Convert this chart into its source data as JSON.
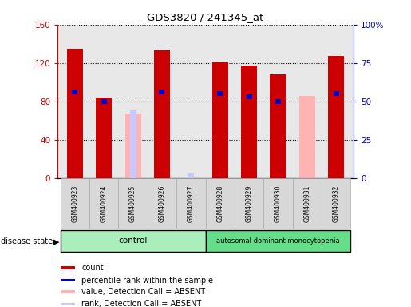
{
  "title": "GDS3820 / 241345_at",
  "samples": [
    "GSM400923",
    "GSM400924",
    "GSM400925",
    "GSM400926",
    "GSM400927",
    "GSM400928",
    "GSM400929",
    "GSM400930",
    "GSM400931",
    "GSM400932"
  ],
  "count_values": [
    135,
    84,
    0,
    133,
    0,
    121,
    117,
    108,
    0,
    127
  ],
  "percentile_values": [
    56,
    50,
    0,
    56,
    0,
    55,
    53,
    50,
    0,
    55
  ],
  "absent_value_values": [
    0,
    0,
    67,
    0,
    0,
    0,
    0,
    0,
    86,
    0
  ],
  "absent_rank_values": [
    0,
    0,
    44,
    0,
    3,
    0,
    0,
    0,
    0,
    0
  ],
  "ylim_left": [
    0,
    160
  ],
  "ylim_right": [
    0,
    100
  ],
  "yticks_left": [
    0,
    40,
    80,
    120,
    160
  ],
  "ytick_labels_left": [
    "0",
    "40",
    "80",
    "120",
    "160"
  ],
  "yticks_right": [
    0,
    25,
    50,
    75,
    100
  ],
  "ytick_labels_right": [
    "0",
    "25",
    "50",
    "75",
    "100%"
  ],
  "color_count": "#cc0000",
  "color_percentile": "#0000cc",
  "color_absent_value": "#ffb3b3",
  "color_absent_rank": "#c8c8ff",
  "color_control_bg": "#aaeebb",
  "color_disease_bg": "#66dd88",
  "plot_bg": "#e8e8e8",
  "legend_items": [
    {
      "color": "#cc0000",
      "label": "count"
    },
    {
      "color": "#0000cc",
      "label": "percentile rank within the sample"
    },
    {
      "color": "#ffb3b3",
      "label": "value, Detection Call = ABSENT"
    },
    {
      "color": "#c8c8ff",
      "label": "rank, Detection Call = ABSENT"
    }
  ]
}
